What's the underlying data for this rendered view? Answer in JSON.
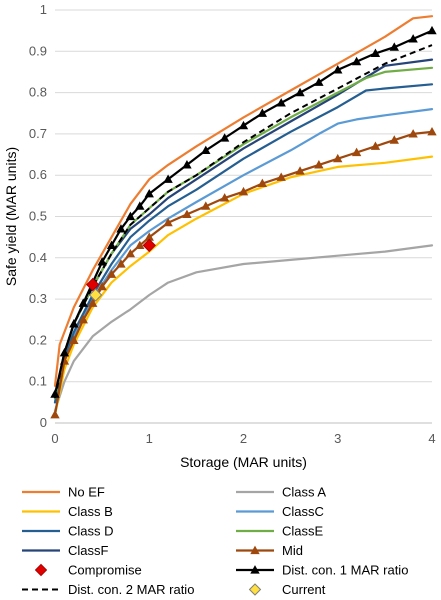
{
  "chart_data": {
    "type": "line",
    "xlabel": "Storage (MAR units)",
    "ylabel": "Safe yield (MAR units)",
    "xlim": [
      0,
      4
    ],
    "ylim": [
      0,
      1
    ],
    "xticks": [
      0,
      1,
      2,
      3,
      4
    ],
    "yticks": [
      0,
      0.1,
      0.2,
      0.3,
      0.4,
      0.5,
      0.6,
      0.7,
      0.8,
      0.9,
      1
    ],
    "ytick_labels": [
      "0",
      "0.1",
      "0.2",
      "0.3",
      "0.4",
      "0.5",
      "0.6",
      "0.7",
      "0.8",
      "0.9",
      "1"
    ],
    "xtick_labels": [
      "0",
      "1",
      "2",
      "3",
      "4"
    ],
    "grid": "horizontal",
    "legend_position": "bottom",
    "series": [
      {
        "name": "No EF",
        "color": "#ED7D31",
        "style": "solid",
        "marker": "none",
        "x": [
          0,
          0.05,
          0.2,
          0.4,
          0.6,
          0.8,
          1.0,
          1.2,
          1.5,
          2.0,
          2.5,
          3.0,
          3.5,
          3.8,
          4.0
        ],
        "y": [
          0.09,
          0.19,
          0.28,
          0.37,
          0.45,
          0.53,
          0.59,
          0.625,
          0.67,
          0.74,
          0.805,
          0.87,
          0.935,
          0.98,
          0.985
        ]
      },
      {
        "name": "Class A",
        "color": "#A5A5A5",
        "style": "solid",
        "marker": "none",
        "x": [
          0,
          0.1,
          0.2,
          0.4,
          0.6,
          0.8,
          1.0,
          1.2,
          1.5,
          2.0,
          2.5,
          3.0,
          3.5,
          4.0
        ],
        "y": [
          0.03,
          0.1,
          0.15,
          0.21,
          0.245,
          0.275,
          0.31,
          0.34,
          0.365,
          0.385,
          0.395,
          0.405,
          0.415,
          0.43
        ]
      },
      {
        "name": "Class B",
        "color": "#FFC000",
        "style": "solid",
        "marker": "none",
        "x": [
          0,
          0.1,
          0.2,
          0.4,
          0.6,
          0.8,
          1.0,
          1.2,
          1.5,
          2.0,
          2.5,
          3.0,
          3.5,
          4.0
        ],
        "y": [
          0.02,
          0.13,
          0.19,
          0.28,
          0.34,
          0.38,
          0.415,
          0.455,
          0.495,
          0.555,
          0.595,
          0.62,
          0.63,
          0.645
        ]
      },
      {
        "name": "ClassC",
        "color": "#5B9BD5",
        "style": "solid",
        "marker": "none",
        "x": [
          0,
          0.1,
          0.2,
          0.4,
          0.6,
          0.8,
          1.0,
          1.2,
          1.5,
          2.0,
          2.5,
          2.8,
          3.0,
          3.2,
          3.5,
          4.0
        ],
        "y": [
          0.05,
          0.15,
          0.21,
          0.3,
          0.37,
          0.43,
          0.465,
          0.495,
          0.535,
          0.6,
          0.66,
          0.7,
          0.725,
          0.735,
          0.745,
          0.76
        ]
      },
      {
        "name": "Class D",
        "color": "#255E91",
        "style": "solid",
        "marker": "none",
        "x": [
          0,
          0.1,
          0.2,
          0.4,
          0.6,
          0.8,
          1.0,
          1.2,
          1.5,
          2.0,
          2.5,
          3.0,
          3.3,
          3.5,
          4.0
        ],
        "y": [
          0.05,
          0.16,
          0.22,
          0.31,
          0.385,
          0.45,
          0.49,
          0.525,
          0.565,
          0.64,
          0.705,
          0.765,
          0.805,
          0.81,
          0.82
        ]
      },
      {
        "name": "ClassE",
        "color": "#70AD47",
        "style": "solid",
        "marker": "none",
        "x": [
          0,
          0.1,
          0.2,
          0.4,
          0.6,
          0.8,
          1.0,
          1.2,
          1.5,
          2.0,
          2.5,
          3.0,
          3.3,
          3.5,
          4.0
        ],
        "y": [
          0.06,
          0.17,
          0.24,
          0.33,
          0.41,
          0.48,
          0.52,
          0.56,
          0.6,
          0.675,
          0.74,
          0.8,
          0.835,
          0.85,
          0.86
        ]
      },
      {
        "name": "ClassF",
        "color": "#264478",
        "style": "solid",
        "marker": "none",
        "x": [
          0,
          0.1,
          0.2,
          0.4,
          0.6,
          0.8,
          1.0,
          1.2,
          1.5,
          2.0,
          2.5,
          3.0,
          3.5,
          4.0
        ],
        "y": [
          0.06,
          0.17,
          0.24,
          0.33,
          0.41,
          0.47,
          0.505,
          0.545,
          0.59,
          0.665,
          0.73,
          0.795,
          0.865,
          0.88
        ]
      },
      {
        "name": "Mid",
        "color": "#9E480E",
        "style": "solid",
        "marker": "triangle",
        "x": [
          0,
          0.1,
          0.2,
          0.3,
          0.4,
          0.5,
          0.6,
          0.7,
          0.8,
          0.9,
          1.0,
          1.2,
          1.4,
          1.6,
          1.8,
          2.0,
          2.2,
          2.4,
          2.6,
          2.8,
          3.0,
          3.2,
          3.4,
          3.6,
          3.8,
          4.0
        ],
        "y": [
          0.02,
          0.15,
          0.2,
          0.25,
          0.29,
          0.33,
          0.36,
          0.385,
          0.41,
          0.43,
          0.45,
          0.485,
          0.505,
          0.525,
          0.545,
          0.56,
          0.58,
          0.595,
          0.61,
          0.625,
          0.64,
          0.655,
          0.67,
          0.685,
          0.7,
          0.705
        ]
      },
      {
        "name": "Compromise",
        "color": "#E00000",
        "style": "none",
        "marker": "diamond",
        "x": [
          0.4,
          1.0
        ],
        "y": [
          0.335,
          0.43
        ]
      },
      {
        "name": "Dist. con. 1 MAR ratio",
        "color": "#000000",
        "style": "solid",
        "marker": "triangle",
        "x": [
          0,
          0.1,
          0.2,
          0.3,
          0.4,
          0.5,
          0.6,
          0.7,
          0.8,
          0.9,
          1.0,
          1.2,
          1.4,
          1.6,
          1.8,
          2.0,
          2.2,
          2.4,
          2.6,
          2.8,
          3.0,
          3.2,
          3.4,
          3.6,
          3.8,
          4.0
        ],
        "y": [
          0.07,
          0.17,
          0.24,
          0.29,
          0.34,
          0.39,
          0.43,
          0.47,
          0.5,
          0.525,
          0.555,
          0.59,
          0.625,
          0.66,
          0.69,
          0.72,
          0.75,
          0.775,
          0.8,
          0.825,
          0.855,
          0.875,
          0.895,
          0.91,
          0.93,
          0.95
        ]
      },
      {
        "name": "Dist. con. 2 MAR ratio",
        "color": "#000000",
        "style": "dashed",
        "marker": "none",
        "x": [
          0,
          0.1,
          0.2,
          0.4,
          0.6,
          0.8,
          1.0,
          1.2,
          1.5,
          2.0,
          2.5,
          3.0,
          3.5,
          4.0
        ],
        "y": [
          0.06,
          0.17,
          0.24,
          0.33,
          0.41,
          0.48,
          0.52,
          0.56,
          0.6,
          0.68,
          0.75,
          0.81,
          0.87,
          0.915
        ]
      },
      {
        "name": "Current",
        "color": "#FFE040",
        "style": "none",
        "marker": "diamond",
        "x": [
          0.43
        ],
        "y": [
          0.31
        ]
      }
    ]
  }
}
